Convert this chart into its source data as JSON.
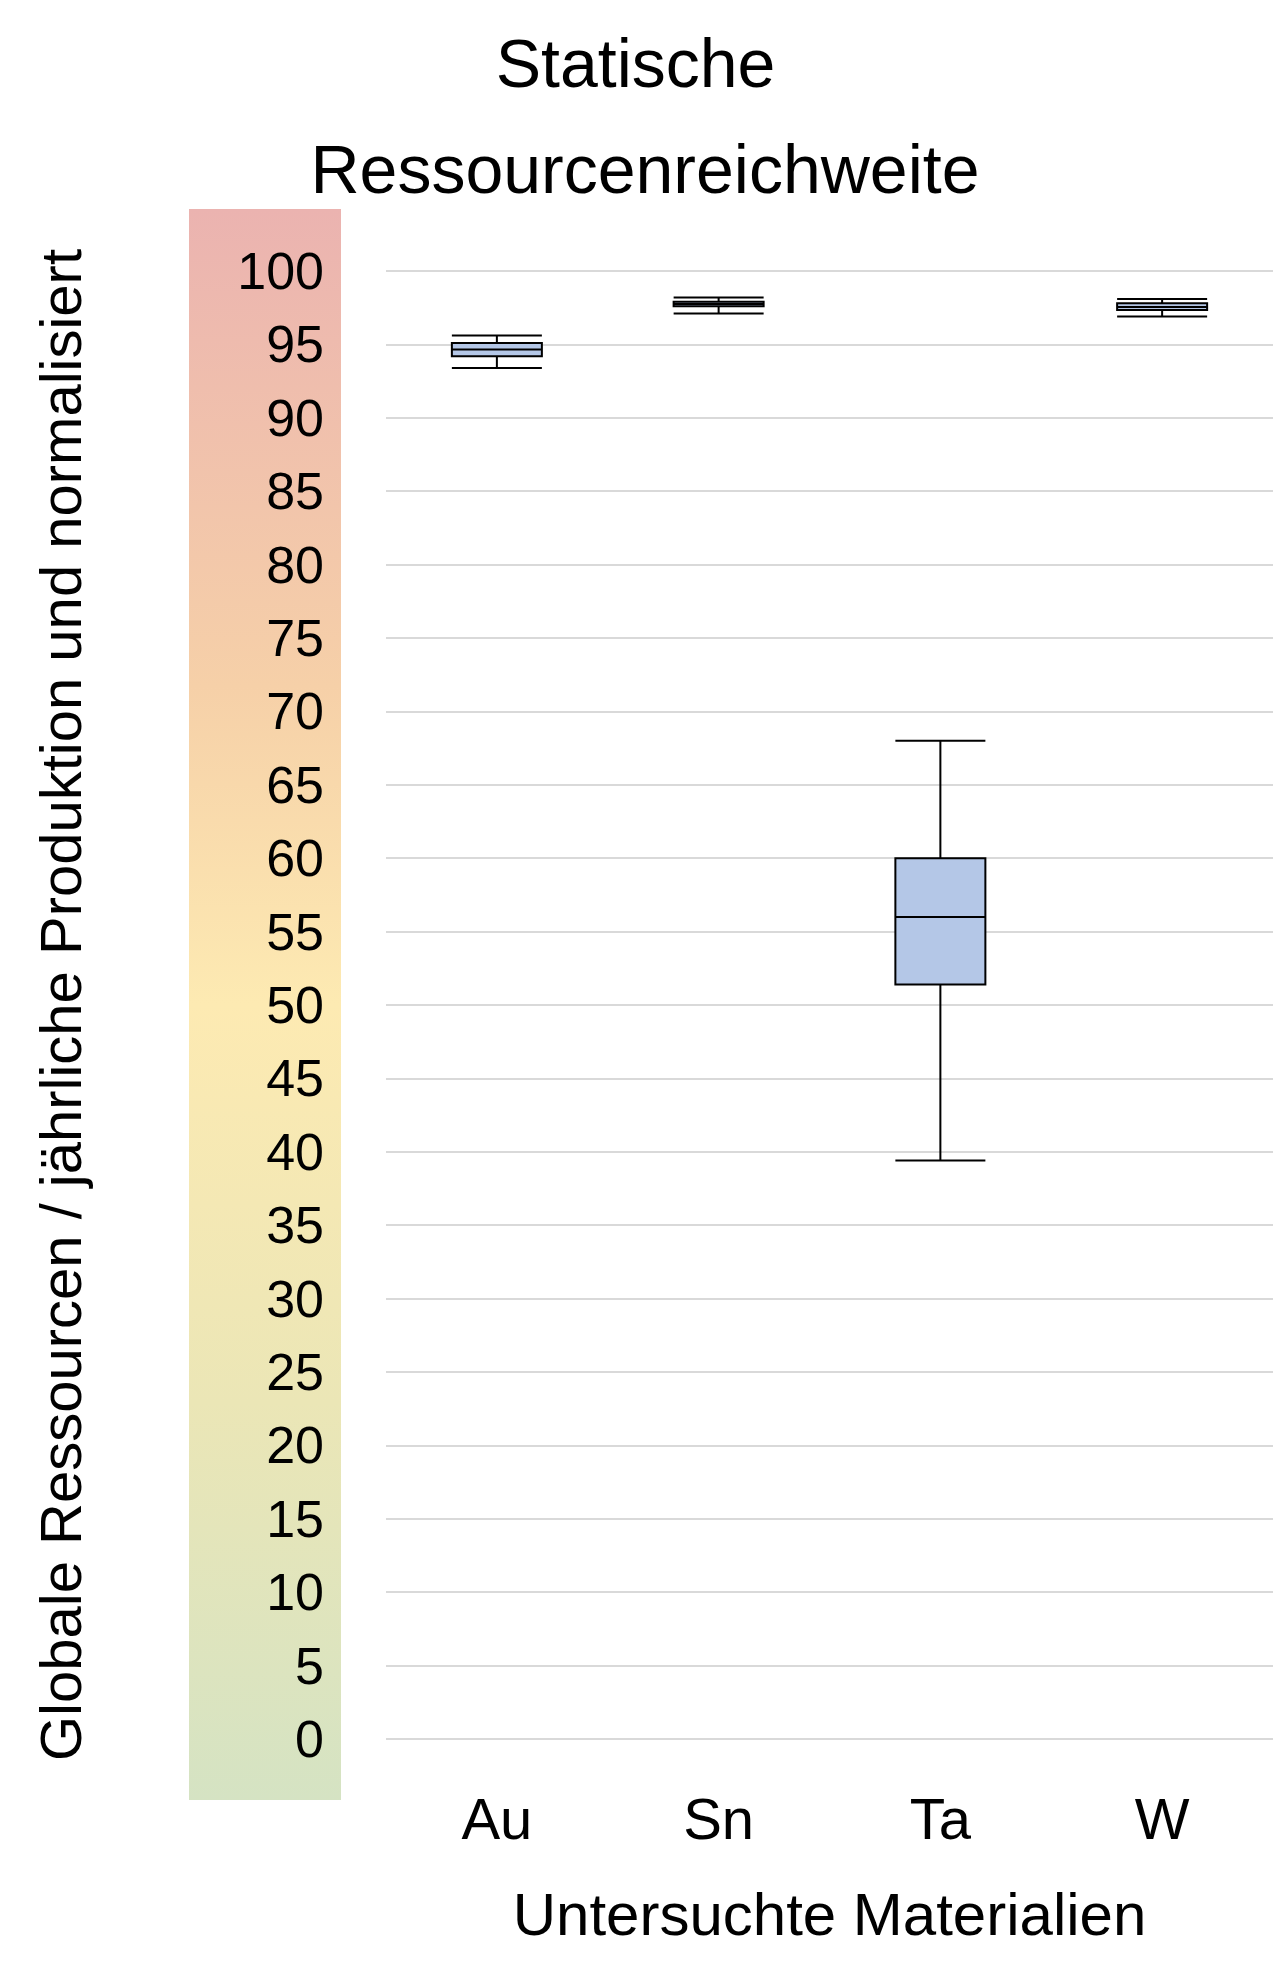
{
  "chart_data": {
    "type": "box",
    "title": "Statische Ressourcenreichweite",
    "xlabel": "Untersuchte Materialien",
    "ylabel": "Globale Ressourcen / jährliche Produktion und normalisiert",
    "categories": [
      "Au",
      "Sn",
      "Ta",
      "W"
    ],
    "series": [
      {
        "color": "#b4c7e7",
        "boxes": [
          {
            "low": 93.4,
            "q1": 94.2,
            "median": 94.65,
            "q3": 95.1,
            "high": 95.6
          },
          {
            "low": 97.1,
            "q1": 97.6,
            "median": 97.75,
            "q3": 97.9,
            "high": 98.2
          },
          {
            "low": 39.4,
            "q1": 51.4,
            "median": 56,
            "q3": 60,
            "high": 68
          },
          {
            "low": 96.9,
            "q1": 97.35,
            "median": 97.55,
            "q3": 97.8,
            "high": 98.1
          }
        ]
      }
    ],
    "ylim": [
      0,
      100
    ],
    "yticks": [
      0,
      5,
      10,
      15,
      20,
      25,
      30,
      35,
      40,
      45,
      50,
      55,
      60,
      65,
      70,
      75,
      80,
      85,
      90,
      95,
      100
    ],
    "grid": "y"
  }
}
